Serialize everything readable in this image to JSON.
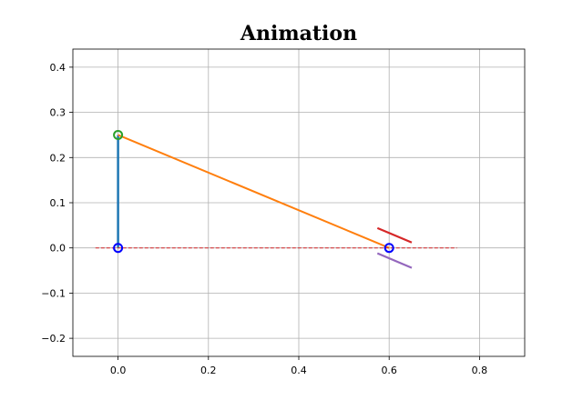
{
  "chart_data": {
    "type": "line",
    "title": "Animation",
    "xlabel": "",
    "ylabel": "",
    "xlim": [
      -0.1,
      0.9
    ],
    "ylim": [
      -0.24,
      0.44
    ],
    "xticks": [
      0.0,
      0.2,
      0.4,
      0.6,
      0.8
    ],
    "xtick_labels": [
      "0.0",
      "0.2",
      "0.4",
      "0.6",
      "0.8"
    ],
    "yticks": [
      -0.2,
      -0.1,
      0.0,
      0.1,
      0.2,
      0.3,
      0.4
    ],
    "ytick_labels": [
      "−0.2",
      "−0.1",
      "0.0",
      "0.1",
      "0.2",
      "0.3",
      "0.4"
    ],
    "grid": true,
    "series": [
      {
        "kind": "line",
        "color": "#1f77b4",
        "dash": false,
        "width": 2.5,
        "points": [
          [
            0.0,
            0.0
          ],
          [
            0.0,
            0.25
          ]
        ]
      },
      {
        "kind": "line",
        "color": "#ff7f0e",
        "dash": false,
        "width": 2.0,
        "points": [
          [
            0.0,
            0.25
          ],
          [
            0.6,
            0.0
          ]
        ]
      },
      {
        "kind": "line",
        "color": "#d62728",
        "dash": true,
        "width": 1.0,
        "points": [
          [
            -0.05,
            0.0
          ],
          [
            0.75,
            0.0
          ]
        ]
      },
      {
        "kind": "line",
        "color": "#d62728",
        "dash": false,
        "width": 2.2,
        "points": [
          [
            0.574,
            0.044
          ],
          [
            0.65,
            0.012
          ]
        ]
      },
      {
        "kind": "line",
        "color": "#9467bd",
        "dash": false,
        "width": 2.2,
        "points": [
          [
            0.574,
            -0.012
          ],
          [
            0.65,
            -0.044
          ]
        ]
      },
      {
        "kind": "marker",
        "color": "#0000ff",
        "points": [
          [
            0.0,
            0.0
          ],
          [
            0.6,
            0.0
          ]
        ]
      },
      {
        "kind": "marker",
        "color": "#2ca02c",
        "points": [
          [
            0.0,
            0.25
          ]
        ]
      }
    ]
  }
}
